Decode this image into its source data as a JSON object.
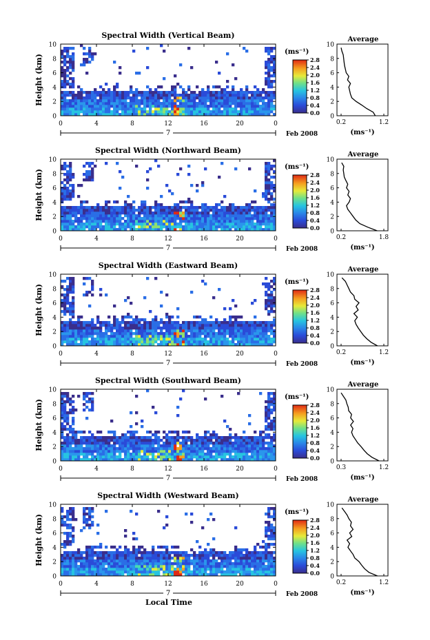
{
  "figure": {
    "xlabel": "Local Time",
    "ylabel": "Height (km)",
    "date_label": "Feb 2008",
    "day_label": "7",
    "colorbar_unit": "(ms⁻¹)",
    "avg_title": "Average",
    "avg_xlabel": "(ms⁻¹)"
  },
  "chart_data": [
    {
      "type": "heatmap",
      "title": "Spectral Width (Vertical Beam)",
      "ylim": [
        0,
        10
      ],
      "xlim": [
        0,
        24
      ],
      "xticks": [
        "0",
        "4",
        "8",
        "12",
        "16",
        "20",
        "0"
      ],
      "yticks": [
        "0",
        "2",
        "4",
        "6",
        "8",
        "10"
      ],
      "colorbar_ticks": [
        "0.0",
        "0.4",
        "0.8",
        "1.2",
        "1.6",
        "2.0",
        "2.4",
        "2.8"
      ],
      "average": {
        "xticks": [
          "0.2",
          "1.2"
        ],
        "xlim": [
          0.2,
          1.2
        ],
        "points": [
          [
            1.0,
            0
          ],
          [
            0.95,
            0.5
          ],
          [
            0.8,
            1
          ],
          [
            0.68,
            1.5
          ],
          [
            0.55,
            2
          ],
          [
            0.45,
            2.5
          ],
          [
            0.42,
            3
          ],
          [
            0.4,
            3.5
          ],
          [
            0.38,
            4
          ],
          [
            0.42,
            4.5
          ],
          [
            0.35,
            5
          ],
          [
            0.38,
            5.5
          ],
          [
            0.32,
            6
          ],
          [
            0.3,
            6.5
          ],
          [
            0.28,
            7
          ],
          [
            0.27,
            7.5
          ],
          [
            0.26,
            8
          ],
          [
            0.25,
            8.5
          ],
          [
            0.22,
            9
          ],
          [
            0.2,
            9.5
          ]
        ]
      }
    },
    {
      "type": "heatmap",
      "title": "Spectral Width (Northward Beam)",
      "ylim": [
        0,
        10
      ],
      "xlim": [
        0,
        24
      ],
      "xticks": [
        "0",
        "4",
        "8",
        "12",
        "16",
        "20",
        "0"
      ],
      "yticks": [
        "0",
        "2",
        "4",
        "6",
        "8",
        "10"
      ],
      "colorbar_ticks": [
        "0.0",
        "0.4",
        "0.8",
        "1.2",
        "1.6",
        "2.0",
        "2.4",
        "2.8"
      ],
      "average": {
        "xticks": [
          "0.2",
          "1.8"
        ],
        "xlim": [
          0.2,
          1.8
        ],
        "points": [
          [
            1.55,
            0
          ],
          [
            1.2,
            0.5
          ],
          [
            0.9,
            1
          ],
          [
            0.75,
            1.5
          ],
          [
            0.65,
            2
          ],
          [
            0.55,
            2.5
          ],
          [
            0.45,
            3
          ],
          [
            0.4,
            3.5
          ],
          [
            0.5,
            4
          ],
          [
            0.55,
            4.5
          ],
          [
            0.45,
            5
          ],
          [
            0.5,
            5.5
          ],
          [
            0.4,
            6
          ],
          [
            0.45,
            6.5
          ],
          [
            0.38,
            7
          ],
          [
            0.32,
            7.5
          ],
          [
            0.3,
            8
          ],
          [
            0.28,
            8.5
          ],
          [
            0.3,
            9
          ],
          [
            0.22,
            9.5
          ]
        ]
      }
    },
    {
      "type": "heatmap",
      "title": "Spectral Width (Eastward Beam)",
      "ylim": [
        0,
        10
      ],
      "xlim": [
        0,
        24
      ],
      "xticks": [
        "0",
        "4",
        "8",
        "12",
        "16",
        "20",
        "0"
      ],
      "yticks": [
        "0",
        "2",
        "4",
        "6",
        "8",
        "10"
      ],
      "colorbar_ticks": [
        "0.0",
        "0.4",
        "0.8",
        "1.2",
        "1.6",
        "2.0",
        "2.4",
        "2.8"
      ],
      "average": {
        "xticks": [
          "0.2",
          "1.2"
        ],
        "xlim": [
          0.2,
          1.2
        ],
        "points": [
          [
            1.05,
            0
          ],
          [
            0.9,
            0.5
          ],
          [
            0.8,
            1
          ],
          [
            0.72,
            1.5
          ],
          [
            0.66,
            2
          ],
          [
            0.6,
            2.5
          ],
          [
            0.55,
            3
          ],
          [
            0.52,
            3.5
          ],
          [
            0.58,
            4
          ],
          [
            0.5,
            4.5
          ],
          [
            0.6,
            5
          ],
          [
            0.55,
            5.5
          ],
          [
            0.62,
            6
          ],
          [
            0.52,
            6.5
          ],
          [
            0.5,
            7
          ],
          [
            0.42,
            7.5
          ],
          [
            0.38,
            8
          ],
          [
            0.34,
            8.5
          ],
          [
            0.3,
            9
          ],
          [
            0.22,
            9.5
          ]
        ]
      }
    },
    {
      "type": "heatmap",
      "title": "Spectral Width (Southward Beam)",
      "ylim": [
        0,
        10
      ],
      "xlim": [
        0,
        24
      ],
      "xticks": [
        "0",
        "4",
        "8",
        "12",
        "16",
        "20",
        "0"
      ],
      "yticks": [
        "0",
        "2",
        "4",
        "6",
        "8",
        "10"
      ],
      "colorbar_ticks": [
        "0.0",
        "0.4",
        "0.8",
        "1.2",
        "1.6",
        "2.0",
        "2.4",
        "2.8"
      ],
      "average": {
        "xticks": [
          "0.3",
          "1.2"
        ],
        "xlim": [
          0.3,
          1.2
        ],
        "points": [
          [
            1.1,
            0
          ],
          [
            0.95,
            0.5
          ],
          [
            0.85,
            1
          ],
          [
            0.78,
            1.5
          ],
          [
            0.72,
            2
          ],
          [
            0.65,
            2.5
          ],
          [
            0.6,
            3
          ],
          [
            0.55,
            3.5
          ],
          [
            0.52,
            4
          ],
          [
            0.55,
            4.5
          ],
          [
            0.5,
            5
          ],
          [
            0.56,
            5.5
          ],
          [
            0.5,
            6
          ],
          [
            0.52,
            6.5
          ],
          [
            0.46,
            7
          ],
          [
            0.45,
            7.5
          ],
          [
            0.42,
            8
          ],
          [
            0.4,
            8.5
          ],
          [
            0.35,
            9
          ],
          [
            0.3,
            9.5
          ]
        ]
      }
    },
    {
      "type": "heatmap",
      "title": "Spectral Width (Westward Beam)",
      "ylim": [
        0,
        10
      ],
      "xlim": [
        0,
        24
      ],
      "xticks": [
        "0",
        "4",
        "8",
        "12",
        "16",
        "20",
        "0"
      ],
      "yticks": [
        "0",
        "2",
        "4",
        "6",
        "8",
        "10"
      ],
      "colorbar_ticks": [
        "0.0",
        "0.4",
        "0.8",
        "1.2",
        "1.6",
        "2.0",
        "2.4",
        "2.8"
      ],
      "average": {
        "xticks": [
          "0.2",
          "1.2"
        ],
        "xlim": [
          0.2,
          1.2
        ],
        "points": [
          [
            1.05,
            0
          ],
          [
            0.85,
            0.5
          ],
          [
            0.75,
            1
          ],
          [
            0.68,
            1.5
          ],
          [
            0.62,
            2
          ],
          [
            0.52,
            2.5
          ],
          [
            0.48,
            3
          ],
          [
            0.42,
            3.5
          ],
          [
            0.36,
            4
          ],
          [
            0.4,
            4.5
          ],
          [
            0.34,
            5
          ],
          [
            0.45,
            5.5
          ],
          [
            0.4,
            6
          ],
          [
            0.48,
            6.5
          ],
          [
            0.42,
            7
          ],
          [
            0.44,
            7.5
          ],
          [
            0.38,
            8
          ],
          [
            0.34,
            8.5
          ],
          [
            0.28,
            9
          ],
          [
            0.22,
            9.5
          ]
        ]
      }
    }
  ]
}
